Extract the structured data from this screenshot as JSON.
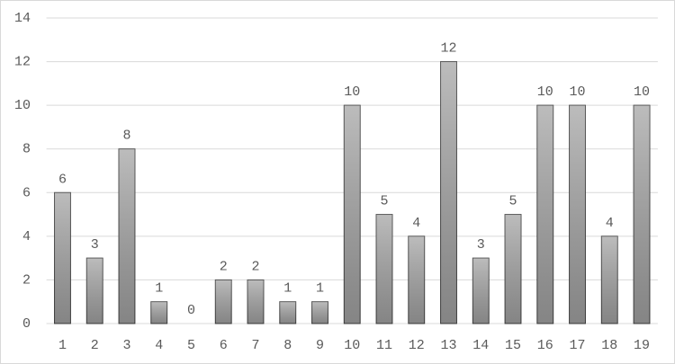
{
  "chart_data": {
    "type": "bar",
    "categories": [
      "1",
      "2",
      "3",
      "4",
      "5",
      "6",
      "7",
      "8",
      "9",
      "10",
      "11",
      "12",
      "13",
      "14",
      "15",
      "16",
      "17",
      "18",
      "19"
    ],
    "values": [
      6,
      3,
      8,
      1,
      0,
      2,
      2,
      1,
      1,
      10,
      5,
      4,
      12,
      3,
      5,
      10,
      10,
      4,
      10
    ],
    "color": "#a6a6a6",
    "ylim": [
      0,
      14
    ],
    "yticks": [
      0,
      2,
      4,
      6,
      8,
      10,
      12,
      14
    ],
    "grid": true
  }
}
